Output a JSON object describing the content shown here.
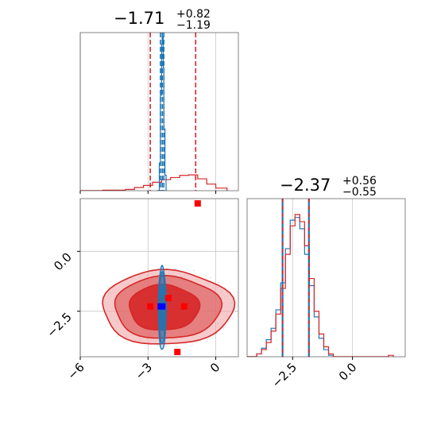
{
  "chart_data": {
    "type": "corner",
    "colors": {
      "sample_a": "#d62728",
      "sample_b": "#1f77b4",
      "marker_a": "#ff0000",
      "marker_b": "#0000ff",
      "grid": "#c8c8c8"
    },
    "param1": {
      "title": {
        "median": "−1.71",
        "plus": "+0.82",
        "minus": "−1.19"
      },
      "range": [
        -6.0,
        1.0
      ],
      "ticks": [
        -6,
        -3,
        0
      ],
      "tick_labels": [
        "−6",
        "−3",
        "0"
      ],
      "quantiles_a": [
        -2.9,
        -1.71,
        -0.89
      ],
      "quantiles_b": [
        -2.45,
        -2.37,
        -2.3
      ],
      "hist_a": [
        {
          "x": -6.0,
          "y": 0.0
        },
        {
          "x": -5.0,
          "y": 0.002
        },
        {
          "x": -4.0,
          "y": 0.005
        },
        {
          "x": -3.6,
          "y": 0.012
        },
        {
          "x": -3.2,
          "y": 0.02
        },
        {
          "x": -2.8,
          "y": 0.032
        },
        {
          "x": -2.4,
          "y": 0.042
        },
        {
          "x": -2.0,
          "y": 0.05
        },
        {
          "x": -1.6,
          "y": 0.058
        },
        {
          "x": -1.2,
          "y": 0.06
        },
        {
          "x": -0.8,
          "y": 0.045
        },
        {
          "x": -0.4,
          "y": 0.025
        },
        {
          "x": 0.0,
          "y": 0.01
        },
        {
          "x": 0.5,
          "y": 0.0
        }
      ],
      "hist_b": [
        {
          "x": -2.6,
          "y": 0.0
        },
        {
          "x": -2.5,
          "y": 0.18
        },
        {
          "x": -2.45,
          "y": 0.62
        },
        {
          "x": -2.4,
          "y": 0.95
        },
        {
          "x": -2.37,
          "y": 1.0
        },
        {
          "x": -2.33,
          "y": 0.8
        },
        {
          "x": -2.3,
          "y": 0.4
        },
        {
          "x": -2.25,
          "y": 0.1
        },
        {
          "x": -2.2,
          "y": 0.0
        }
      ]
    },
    "param2": {
      "title": {
        "median": "−2.37",
        "plus": "+0.56",
        "minus": "−0.55"
      },
      "range": [
        -4.4,
        2.2
      ],
      "ticks": [
        -2.5,
        0.0
      ],
      "tick_labels": [
        "−2.5",
        "0.0"
      ],
      "quantiles_a": [
        -2.92,
        -2.37,
        -1.82
      ],
      "quantiles_b": [
        -2.92,
        -2.37,
        -1.82
      ],
      "hist_a": [
        {
          "x": -4.4,
          "y": 0.0
        },
        {
          "x": -4.0,
          "y": 0.02
        },
        {
          "x": -3.8,
          "y": 0.05
        },
        {
          "x": -3.6,
          "y": 0.1
        },
        {
          "x": -3.4,
          "y": 0.18
        },
        {
          "x": -3.2,
          "y": 0.3
        },
        {
          "x": -3.0,
          "y": 0.48
        },
        {
          "x": -2.8,
          "y": 0.72
        },
        {
          "x": -2.6,
          "y": 0.92
        },
        {
          "x": -2.4,
          "y": 1.0
        },
        {
          "x": -2.2,
          "y": 0.95
        },
        {
          "x": -2.0,
          "y": 0.78
        },
        {
          "x": -1.8,
          "y": 0.55
        },
        {
          "x": -1.6,
          "y": 0.32
        },
        {
          "x": -1.4,
          "y": 0.16
        },
        {
          "x": -1.2,
          "y": 0.07
        },
        {
          "x": -1.0,
          "y": 0.02
        },
        {
          "x": -0.8,
          "y": 0.0
        },
        {
          "x": 1.4,
          "y": 0.0
        },
        {
          "x": 1.5,
          "y": 0.01
        },
        {
          "x": 1.7,
          "y": 0.0
        }
      ],
      "hist_b": [
        {
          "x": -4.4,
          "y": 0.0
        },
        {
          "x": -4.0,
          "y": 0.02
        },
        {
          "x": -3.8,
          "y": 0.06
        },
        {
          "x": -3.6,
          "y": 0.12
        },
        {
          "x": -3.4,
          "y": 0.2
        },
        {
          "x": -3.2,
          "y": 0.33
        },
        {
          "x": -3.0,
          "y": 0.52
        },
        {
          "x": -2.8,
          "y": 0.76
        },
        {
          "x": -2.6,
          "y": 0.96
        },
        {
          "x": -2.4,
          "y": 0.98
        },
        {
          "x": -2.2,
          "y": 0.9
        },
        {
          "x": -2.0,
          "y": 0.72
        },
        {
          "x": -1.8,
          "y": 0.5
        },
        {
          "x": -1.6,
          "y": 0.28
        },
        {
          "x": -1.4,
          "y": 0.13
        },
        {
          "x": -1.2,
          "y": 0.05
        },
        {
          "x": -1.0,
          "y": 0.01
        },
        {
          "x": -0.8,
          "y": 0.0
        }
      ]
    },
    "joint": {
      "contours_a": [
        {
          "level": 0.39,
          "cx": -2.3,
          "cy": -2.35,
          "rx": 1.55,
          "ry": 0.95
        },
        {
          "level": 0.86,
          "cx": -2.15,
          "cy": -2.35,
          "rx": 2.35,
          "ry": 1.3
        },
        {
          "level": 0.99,
          "cx": -2.15,
          "cy": -2.35,
          "rx": 2.9,
          "ry": 1.55
        }
      ],
      "contours_b": [
        {
          "level": 0.39,
          "cx": -2.37,
          "cy": -2.37,
          "rx": 0.08,
          "ry": 0.95
        },
        {
          "level": 0.86,
          "cx": -2.37,
          "cy": -2.37,
          "rx": 0.13,
          "ry": 1.5
        },
        {
          "level": 0.99,
          "cx": -2.37,
          "cy": -2.37,
          "rx": 0.17,
          "ry": 1.75
        }
      ],
      "outliers_a": [
        {
          "x": -0.8,
          "y": 2.0
        },
        {
          "x": -2.1,
          "y": -1.95
        },
        {
          "x": -2.9,
          "y": -2.3
        },
        {
          "x": -1.4,
          "y": -2.3
        },
        {
          "x": -1.7,
          "y": -4.2
        }
      ],
      "outliers_b": [
        {
          "x": -2.4,
          "y": -2.3
        }
      ]
    }
  }
}
